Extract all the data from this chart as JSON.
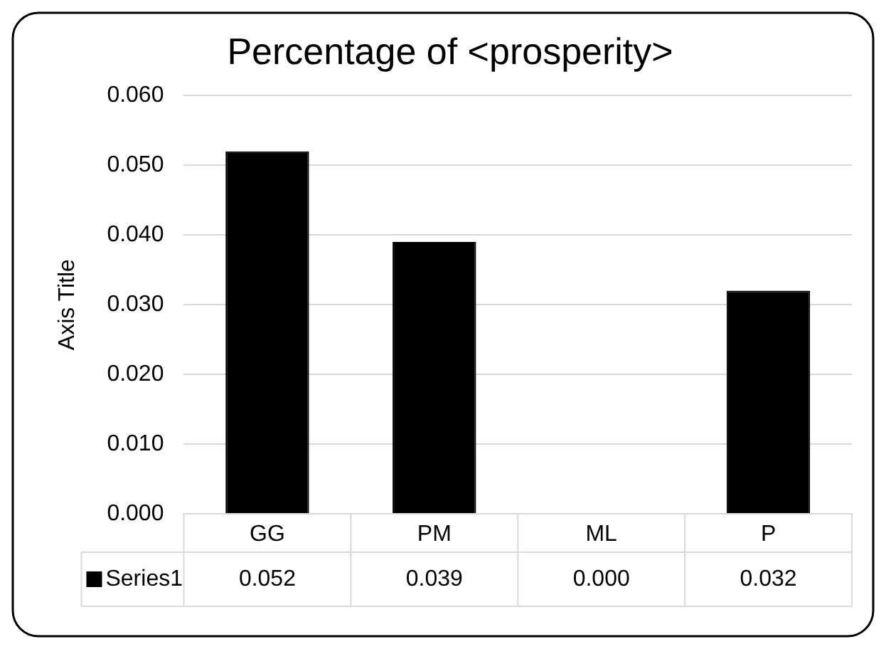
{
  "chart_data": {
    "type": "bar",
    "title": "Percentage of <prosperity>",
    "ylabel": "Axis Title",
    "categories": [
      "GG",
      "PM",
      "ML",
      "P"
    ],
    "series": [
      {
        "name": "Series1",
        "color": "#000000",
        "values": [
          0.052,
          0.039,
          0.0,
          0.032
        ],
        "value_labels": [
          "0.052",
          "0.039",
          "0.000",
          "0.032"
        ]
      }
    ],
    "ylim": [
      0,
      0.06
    ],
    "yticks": [
      {
        "value": 0,
        "label": "0.000"
      },
      {
        "value": 0.01,
        "label": "0.010"
      },
      {
        "value": 0.02,
        "label": "0.020"
      },
      {
        "value": 0.03,
        "label": "0.030"
      },
      {
        "value": 0.04,
        "label": "0.040"
      },
      {
        "value": 0.05,
        "label": "0.050"
      },
      {
        "value": 0.06,
        "label": "0.060"
      }
    ],
    "grid": "y",
    "legend": "bottom"
  }
}
